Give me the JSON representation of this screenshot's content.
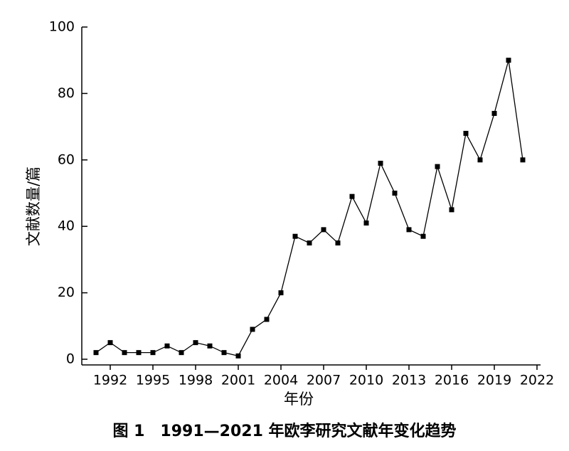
{
  "chart_data": {
    "type": "line",
    "caption": "图 1　1991—2021 年欧李研究文献年变化趋势",
    "x_label": "年份",
    "y_label": "文献数量/篇",
    "x": [
      1991,
      1992,
      1993,
      1994,
      1995,
      1996,
      1997,
      1998,
      1999,
      2000,
      2001,
      2002,
      2003,
      2004,
      2005,
      2006,
      2007,
      2008,
      2009,
      2010,
      2011,
      2012,
      2013,
      2014,
      2015,
      2016,
      2017,
      2018,
      2019,
      2020,
      2021
    ],
    "values": [
      2,
      5,
      2,
      2,
      2,
      4,
      2,
      5,
      4,
      2,
      1,
      9,
      12,
      20,
      37,
      35,
      39,
      35,
      49,
      41,
      59,
      50,
      39,
      37,
      58,
      45,
      68,
      60,
      74,
      90,
      60
    ],
    "color": "#000000",
    "xlim": [
      1990,
      2022
    ],
    "xticks": [
      1992,
      1995,
      1998,
      2001,
      2004,
      2007,
      2010,
      2013,
      2016,
      2019,
      2022
    ],
    "ylim": [
      0,
      100
    ],
    "yticks": [
      0,
      20,
      40,
      60,
      80,
      100
    ]
  }
}
